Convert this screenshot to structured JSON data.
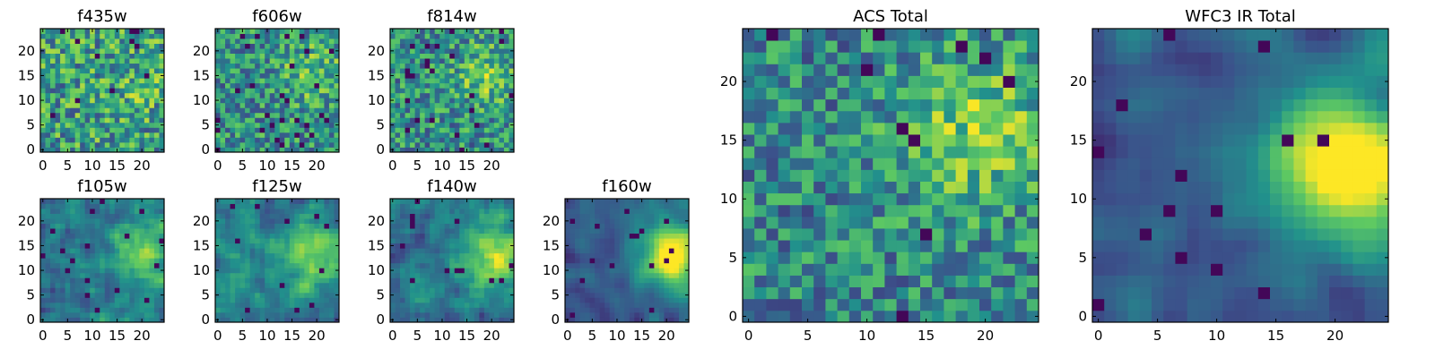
{
  "figure": {
    "title": "",
    "colormap": [
      "#440154",
      "#3b528b",
      "#21918c",
      "#5ec962",
      "#fde725"
    ]
  },
  "chart_data": [
    {
      "type": "heatmap",
      "title": "f435w",
      "xlim": [
        -0.5,
        24.5
      ],
      "ylim": [
        -0.5,
        24.5
      ],
      "xticks": [
        0,
        5,
        10,
        15,
        20
      ],
      "yticks": [
        0,
        5,
        10,
        15,
        20
      ],
      "grid_size": 25,
      "seed": 11,
      "noise": 0.85,
      "smooth": 0,
      "hotspot": {
        "x": 19,
        "y": 14,
        "strength": 0.1
      },
      "dark_fraction": 0.02,
      "xlabel": "",
      "ylabel": ""
    },
    {
      "type": "heatmap",
      "title": "f606w",
      "xlim": [
        -0.5,
        24.5
      ],
      "ylim": [
        -0.5,
        24.5
      ],
      "xticks": [
        0,
        5,
        10,
        15,
        20
      ],
      "yticks": [
        0,
        5,
        10,
        15,
        20
      ],
      "grid_size": 25,
      "seed": 23,
      "noise": 0.75,
      "smooth": 0,
      "hotspot": {
        "x": 19,
        "y": 16,
        "strength": 0.2
      },
      "dark_fraction": 0.04,
      "xlabel": "",
      "ylabel": ""
    },
    {
      "type": "heatmap",
      "title": "f814w",
      "xlim": [
        -0.5,
        24.5
      ],
      "ylim": [
        -0.5,
        24.5
      ],
      "xticks": [
        0,
        5,
        10,
        15,
        20
      ],
      "yticks": [
        0,
        5,
        10,
        15,
        20
      ],
      "grid_size": 25,
      "seed": 37,
      "noise": 0.75,
      "smooth": 0,
      "hotspot": {
        "x": 19,
        "y": 15,
        "strength": 0.22
      },
      "dark_fraction": 0.04,
      "xlabel": "",
      "ylabel": ""
    },
    {
      "type": "heatmap",
      "title": "f105w",
      "xlim": [
        -0.5,
        24.5
      ],
      "ylim": [
        -0.5,
        24.5
      ],
      "xticks": [
        0,
        5,
        10,
        15,
        20
      ],
      "yticks": [
        0,
        5,
        10,
        15,
        20
      ],
      "grid_size": 25,
      "seed": 41,
      "noise": 0.6,
      "smooth": 1,
      "hotspot": {
        "x": 20,
        "y": 13,
        "strength": 0.35
      },
      "dark_fraction": 0.02,
      "xlabel": "",
      "ylabel": ""
    },
    {
      "type": "heatmap",
      "title": "f125w",
      "xlim": [
        -0.5,
        24.5
      ],
      "ylim": [
        -0.5,
        24.5
      ],
      "xticks": [
        0,
        5,
        10,
        15,
        20
      ],
      "yticks": [
        0,
        5,
        10,
        15,
        20
      ],
      "grid_size": 25,
      "seed": 53,
      "noise": 0.6,
      "smooth": 1,
      "hotspot": {
        "x": 20,
        "y": 13,
        "strength": 0.4
      },
      "dark_fraction": 0.02,
      "xlabel": "",
      "ylabel": ""
    },
    {
      "type": "heatmap",
      "title": "f140w",
      "xlim": [
        -0.5,
        24.5
      ],
      "ylim": [
        -0.5,
        24.5
      ],
      "xticks": [
        0,
        5,
        10,
        15,
        20
      ],
      "yticks": [
        0,
        5,
        10,
        15,
        20
      ],
      "grid_size": 25,
      "seed": 67,
      "noise": 0.55,
      "smooth": 1,
      "hotspot": {
        "x": 21,
        "y": 13,
        "strength": 0.5
      },
      "dark_fraction": 0.02,
      "xlabel": "",
      "ylabel": ""
    },
    {
      "type": "heatmap",
      "title": "f160w",
      "xlim": [
        -0.5,
        24.5
      ],
      "ylim": [
        -0.5,
        24.5
      ],
      "xticks": [
        0,
        5,
        10,
        15,
        20
      ],
      "yticks": [
        0,
        5,
        10,
        15,
        20
      ],
      "grid_size": 25,
      "seed": 79,
      "noise": 0.4,
      "smooth": 2,
      "hotspot": {
        "x": 21,
        "y": 13,
        "strength": 0.75
      },
      "dark_fraction": 0.03,
      "xlabel": "",
      "ylabel": ""
    },
    {
      "type": "heatmap",
      "title": "ACS Total",
      "xlim": [
        -0.5,
        24.5
      ],
      "ylim": [
        -0.5,
        24.5
      ],
      "xticks": [
        0,
        5,
        10,
        15,
        20
      ],
      "yticks": [
        0,
        5,
        10,
        15,
        20
      ],
      "grid_size": 25,
      "seed": 97,
      "noise": 0.7,
      "smooth": 0,
      "hotspot": {
        "x": 19,
        "y": 16,
        "strength": 0.3
      },
      "dark_fraction": 0.02,
      "xlabel": "",
      "ylabel": ""
    },
    {
      "type": "heatmap",
      "title": "WFC3 IR Total",
      "xlim": [
        -0.5,
        24.5
      ],
      "ylim": [
        -0.5,
        24.5
      ],
      "xticks": [
        0,
        5,
        10,
        15,
        20
      ],
      "yticks": [
        0,
        5,
        10,
        15,
        20
      ],
      "grid_size": 25,
      "seed": 113,
      "noise": 0.45,
      "smooth": 2,
      "hotspot": {
        "x": 21,
        "y": 13,
        "strength": 0.8
      },
      "dark_fraction": 0.03,
      "xlabel": "",
      "ylabel": ""
    }
  ]
}
